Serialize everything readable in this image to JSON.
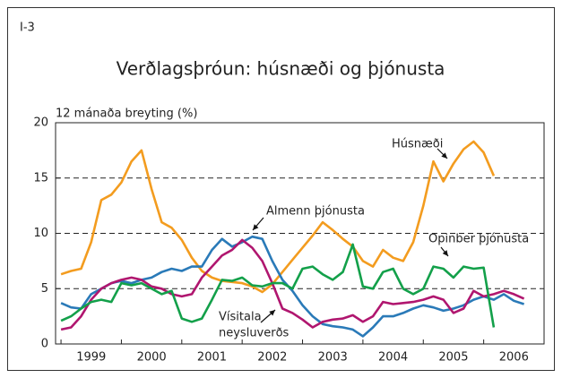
{
  "chart_data": {
    "type": "line",
    "label": "I-3",
    "title": "Verðlagsþróun: húsnæði og þjónusta",
    "y_label": "12 mánaða breyting (%)",
    "categories": [
      "1999",
      "2000",
      "2001",
      "2002",
      "2003",
      "2004",
      "2005",
      "2006"
    ],
    "x": [
      1999,
      1999.167,
      1999.333,
      1999.5,
      1999.667,
      1999.833,
      2000,
      2000.167,
      2000.333,
      2000.5,
      2000.667,
      2000.833,
      2001,
      2001.167,
      2001.333,
      2001.5,
      2001.667,
      2001.833,
      2002,
      2002.167,
      2002.333,
      2002.5,
      2002.667,
      2002.833,
      2003,
      2003.167,
      2003.333,
      2003.5,
      2003.667,
      2003.833,
      2004,
      2004.167,
      2004.333,
      2004.5,
      2004.667,
      2004.833,
      2005,
      2005.167,
      2005.333,
      2005.5,
      2005.667,
      2005.833,
      2006,
      2006.167,
      2006.333,
      2006.5,
      2006.667
    ],
    "xlim": [
      1998.91,
      2007
    ],
    "ylim": [
      0,
      20
    ],
    "yticks": [
      0,
      5,
      10,
      15,
      20
    ],
    "grid": true,
    "series": [
      {
        "name": "Húsnæði",
        "color": "#f39c1f",
        "values": [
          6.3,
          6.6,
          6.8,
          9.2,
          13.0,
          13.5,
          14.6,
          16.5,
          17.5,
          14.0,
          11.0,
          10.5,
          9.4,
          7.8,
          6.6,
          6.0,
          5.7,
          5.6,
          5.5,
          5.2,
          4.7,
          5.4,
          6.5,
          7.6,
          8.7,
          9.8,
          11.0,
          10.3,
          9.5,
          8.8,
          7.5,
          7.0,
          8.5,
          7.8,
          7.5,
          9.2,
          12.5,
          16.5,
          14.7,
          16.3,
          17.6,
          18.3,
          17.3,
          15.2,
          null,
          null,
          null
        ]
      },
      {
        "name": "Almenn þjónusta",
        "color": "#2a7ab8",
        "values": [
          3.7,
          3.3,
          3.2,
          4.5,
          5.0,
          5.5,
          5.7,
          5.5,
          5.8,
          6.0,
          6.5,
          6.8,
          6.6,
          7.0,
          7.0,
          8.5,
          9.5,
          8.8,
          9.2,
          9.7,
          9.5,
          7.5,
          5.8,
          4.8,
          3.5,
          2.5,
          1.8,
          1.6,
          1.5,
          1.3,
          0.7,
          1.5,
          2.5,
          2.5,
          2.8,
          3.2,
          3.5,
          3.3,
          3.0,
          3.2,
          3.5,
          4.0,
          4.3,
          4.0,
          4.5,
          3.9,
          3.6
        ]
      },
      {
        "name": "Vísitala neysluverðs",
        "color": "#b0166f",
        "values": [
          1.3,
          1.5,
          2.5,
          4.0,
          5.0,
          5.5,
          5.8,
          6.0,
          5.8,
          5.2,
          5.0,
          4.5,
          4.3,
          4.5,
          6.0,
          7.0,
          8.0,
          8.5,
          9.4,
          8.7,
          7.5,
          5.5,
          3.2,
          2.8,
          2.2,
          1.5,
          2.0,
          2.2,
          2.3,
          2.6,
          2.0,
          2.5,
          3.8,
          3.6,
          3.7,
          3.8,
          4.0,
          4.3,
          4.0,
          2.8,
          3.2,
          4.8,
          4.3,
          4.5,
          4.8,
          4.5,
          4.1
        ]
      },
      {
        "name": "Opinber þjónusta",
        "color": "#13a04a",
        "values": [
          2.1,
          2.5,
          3.2,
          3.8,
          4.0,
          3.8,
          5.5,
          5.3,
          5.5,
          5.0,
          4.5,
          4.8,
          2.3,
          2.0,
          2.3,
          4.0,
          5.8,
          5.7,
          6.0,
          5.3,
          5.2,
          5.5,
          5.5,
          5.0,
          6.8,
          7.0,
          6.3,
          5.8,
          6.5,
          9.0,
          5.2,
          5.0,
          6.5,
          6.8,
          5.0,
          4.5,
          5.0,
          7.0,
          6.8,
          6.0,
          7.0,
          6.8,
          6.9,
          1.5,
          null,
          null,
          null
        ]
      }
    ],
    "annotations": [
      {
        "lines": [
          "Húsnæði"
        ]
      },
      {
        "lines": [
          "Almenn þjónusta"
        ]
      },
      {
        "lines": [
          "Opinber þjónusta"
        ]
      },
      {
        "lines": [
          "Vísitala",
          "neysluverðs"
        ]
      }
    ]
  }
}
